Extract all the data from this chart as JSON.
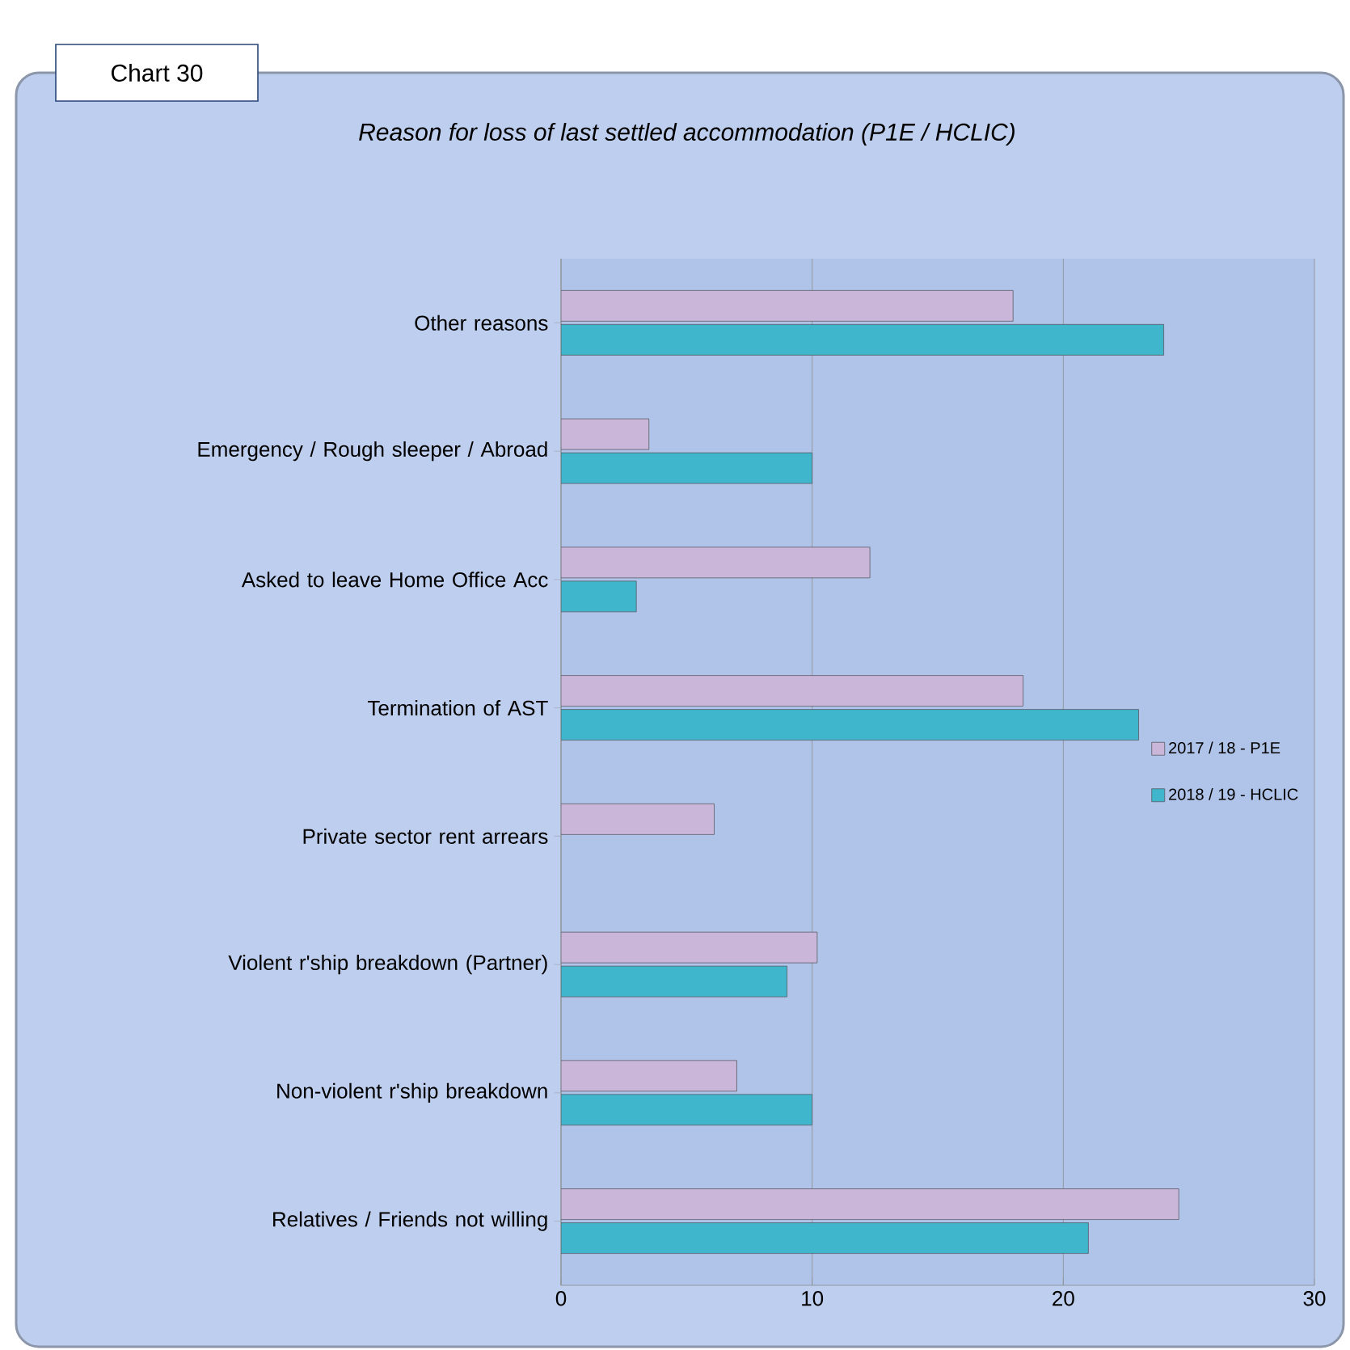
{
  "chart_data": {
    "type": "bar",
    "orientation": "horizontal",
    "title": "Reason for loss of last settled accommodation (P1E / HCLIC)",
    "annotations": [
      "Chart 30"
    ],
    "categories": [
      "Other reasons",
      "Emergency / Rough sleeper / Abroad",
      "Asked to leave Home Office Acc",
      "Termination of AST",
      "Private sector rent arrears",
      "Violent r'ship breakdown (Partner)",
      "Non-violent r'ship breakdown",
      "Relatives / Friends not willing"
    ],
    "series": [
      {
        "name": "2017 / 18 - P1E",
        "color": "#c9b6d9",
        "values": [
          18,
          3.5,
          12.3,
          18.4,
          6.1,
          10.2,
          7,
          24.6
        ]
      },
      {
        "name": "2018 / 19 - HCLIC",
        "color": "#3fb6cb",
        "values": [
          24,
          10,
          3,
          23,
          null,
          9,
          10,
          21
        ]
      }
    ],
    "xlim": [
      0,
      30
    ],
    "xticks": [
      0,
      10,
      20,
      30
    ],
    "grid": "x",
    "legend": "right"
  }
}
